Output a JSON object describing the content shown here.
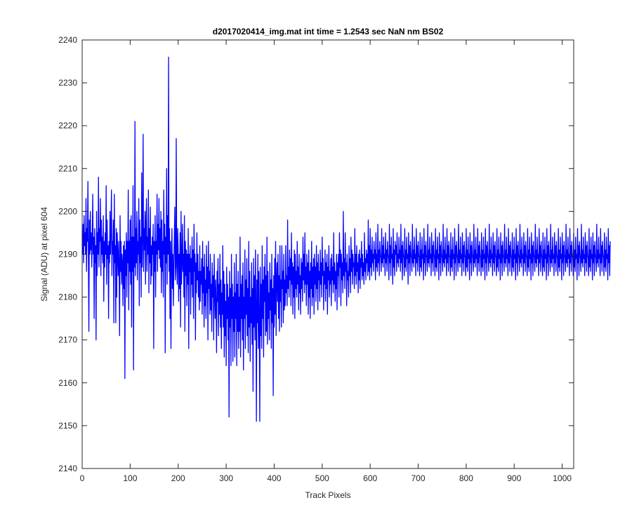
{
  "chart_data": {
    "type": "line",
    "title": "d2017020414_img.mat int time = 1.2543 sec  NaN nm BS02",
    "xlabel": "Track Pixels",
    "ylabel": "Signal (ADU) at pixel 604",
    "xlim": [
      0,
      1024
    ],
    "ylim": [
      2140,
      2240
    ],
    "xticks": [
      0,
      100,
      200,
      300,
      400,
      500,
      600,
      700,
      800,
      900,
      1000
    ],
    "yticks": [
      2140,
      2150,
      2160,
      2170,
      2180,
      2190,
      2200,
      2210,
      2220,
      2230,
      2240
    ],
    "grid": false,
    "legend": "none",
    "line_color": "#0000ff",
    "series": [
      {
        "x_start": 1,
        "x_step": 1,
        "values": [
          2190,
          2197,
          2188,
          2199,
          2192,
          2195,
          2190,
          2203,
          2186,
          2196,
          2193,
          2207,
          2189,
          2172,
          2198,
          2190,
          2200,
          2191,
          2195,
          2187,
          2193,
          2204,
          2190,
          2194,
          2175,
          2196,
          2188,
          2192,
          2170,
          2200,
          2185,
          2195,
          2190,
          2208,
          2187,
          2196,
          2193,
          2203,
          2185,
          2198,
          2190,
          2194,
          2188,
          2199,
          2179,
          2193,
          2187,
          2195,
          2190,
          2206,
          2183,
          2198,
          2189,
          2192,
          2175,
          2193,
          2188,
          2200,
          2190,
          2196,
          2205,
          2185,
          2193,
          2190,
          2198,
          2174,
          2204,
          2188,
          2192,
          2174,
          2196,
          2180,
          2195,
          2190,
          2185,
          2193,
          2187,
          2171,
          2199,
          2186,
          2193,
          2183,
          2190,
          2188,
          2178,
          2192,
          2182,
          2193,
          2161,
          2191,
          2185,
          2195,
          2180,
          2193,
          2188,
          2205,
          2177,
          2193,
          2186,
          2198,
          2183,
          2199,
          2173,
          2194,
          2186,
          2206,
          2163,
          2194,
          2187,
          2221,
          2185,
          2196,
          2188,
          2200,
          2184,
          2193,
          2190,
          2203,
          2178,
          2198,
          2188,
          2194,
          2180,
          2209,
          2187,
          2194,
          2218,
          2186,
          2196,
          2191,
          2200,
          2183,
          2197,
          2203,
          2186,
          2194,
          2190,
          2205,
          2181,
          2196,
          2188,
          2201,
          2183,
          2192,
          2185,
          2194,
          2190,
          2197,
          2168,
          2193,
          2186,
          2199,
          2180,
          2193,
          2190,
          2204,
          2186,
          2197,
          2191,
          2203,
          2189,
          2196,
          2187,
          2200,
          2181,
          2198,
          2186,
          2193,
          2180,
          2205,
          2190,
          2197,
          2167,
          2194,
          2188,
          2210,
          2183,
          2199,
          2190,
          2236,
          2186,
          2196,
          2175,
          2193,
          2168,
          2189,
          2196,
          2182,
          2190,
          2178,
          2187,
          2194,
          2201,
          2184,
          2187,
          2217,
          2188,
          2183,
          2196,
          2191,
          2179,
          2190,
          2182,
          2195,
          2173,
          2200,
          2183,
          2188,
          2197,
          2186,
          2190,
          2180,
          2199,
          2172,
          2193,
          2185,
          2191,
          2178,
          2190,
          2183,
          2196,
          2168,
          2190,
          2186,
          2192,
          2176,
          2189,
          2183,
          2194,
          2180,
          2191,
          2175,
          2197,
          2186,
          2190,
          2170,
          2188,
          2181,
          2195,
          2184,
          2190,
          2180,
          2186,
          2177,
          2192,
          2179,
          2186,
          2183,
          2189,
          2176,
          2193,
          2181,
          2187,
          2173,
          2190,
          2178,
          2184,
          2175,
          2192,
          2181,
          2187,
          2170,
          2193,
          2182,
          2186,
          2176,
          2190,
          2177,
          2183,
          2172,
          2188,
          2180,
          2185,
          2170,
          2190,
          2182,
          2175,
          2184,
          2178,
          2167,
          2186,
          2179,
          2189,
          2171,
          2183,
          2176,
          2190,
          2173,
          2184,
          2168,
          2181,
          2176,
          2192,
          2173,
          2186,
          2166,
          2183,
          2171,
          2179,
          2164,
          2187,
          2175,
          2183,
          2170,
          2180,
          2152,
          2186,
          2173,
          2182,
          2164,
          2190,
          2175,
          2183,
          2165,
          2180,
          2172,
          2188,
          2166,
          2181,
          2175,
          2190,
          2164,
          2183,
          2172,
          2186,
          2168,
          2180,
          2172,
          2194,
          2166,
          2183,
          2175,
          2185,
          2170,
          2188,
          2163,
          2180,
          2175,
          2191,
          2168,
          2184,
          2176,
          2189,
          2171,
          2182,
          2167,
          2193,
          2173,
          2186,
          2165,
          2180,
          2174,
          2188,
          2169,
          2182,
          2158,
          2189,
          2173,
          2185,
          2170,
          2191,
          2178,
          2151,
          2184,
          2174,
          2190,
          2168,
          2186,
          2175,
          2151,
          2187,
          2171,
          2183,
          2168,
          2192,
          2175,
          2184,
          2166,
          2187,
          2179,
          2190,
          2171,
          2185,
          2172,
          2194,
          2169,
          2186,
          2175,
          2181,
          2170,
          2188,
          2177,
          2184,
          2168,
          2190,
          2174,
          2182,
          2157,
          2185,
          2173,
          2189,
          2176,
          2193,
          2171,
          2184,
          2188,
          2179,
          2190,
          2175,
          2185,
          2172,
          2192,
          2179,
          2184,
          2173,
          2192,
          2182,
          2186,
          2174,
          2190,
          2177,
          2184,
          2178,
          2192,
          2181,
          2185,
          2178,
          2198,
          2182,
          2187,
          2180,
          2191,
          2184,
          2189,
          2178,
          2195,
          2183,
          2188,
          2176,
          2187,
          2180,
          2191,
          2175,
          2190,
          2182,
          2186,
          2180,
          2193,
          2183,
          2187,
          2177,
          2190,
          2181,
          2185,
          2176,
          2189,
          2182,
          2188,
          2179,
          2194,
          2184,
          2190,
          2181,
          2195,
          2183,
          2187,
          2178,
          2190,
          2183,
          2188,
          2176,
          2191,
          2180,
          2186,
          2175,
          2188,
          2182,
          2193,
          2178,
          2187,
          2180,
          2189,
          2176,
          2190,
          2183,
          2187,
          2179,
          2192,
          2182,
          2188,
          2177,
          2190,
          2184,
          2186,
          2179,
          2191,
          2183,
          2188,
          2180,
          2194,
          2185,
          2189,
          2177,
          2186,
          2183,
          2191,
          2179,
          2188,
          2182,
          2190,
          2176,
          2187,
          2184,
          2192,
          2180,
          2186,
          2183,
          2189,
          2178,
          2190,
          2184,
          2187,
          2181,
          2195,
          2183,
          2188,
          2179,
          2186,
          2182,
          2190,
          2177,
          2188,
          2185,
          2190,
          2180,
          2195,
          2187,
          2191,
          2178,
          2190,
          2184,
          2188,
          2181,
          2200,
          2185,
          2189,
          2182,
          2195,
          2186,
          2188,
          2178,
          2190,
          2184,
          2186,
          2180,
          2192,
          2185,
          2189,
          2181,
          2194,
          2186,
          2191,
          2183,
          2190,
          2187,
          2188,
          2182,
          2196,
          2185,
          2190,
          2183,
          2192,
          2186,
          2188,
          2181,
          2190,
          2184,
          2191,
          2182,
          2189,
          2187,
          2193,
          2184,
          2190,
          2185,
          2188,
          2183,
          2195,
          2186,
          2189,
          2184,
          2191,
          2188,
          2190,
          2185,
          2198,
          2186,
          2192,
          2184,
          2196,
          2187,
          2191,
          2185,
          2194,
          2188,
          2190,
          2186,
          2193,
          2189,
          2191,
          2184,
          2195,
          2187,
          2190,
          2186,
          2197,
          2188,
          2191,
          2185,
          2193,
          2190,
          2189,
          2186,
          2196,
          2188,
          2192,
          2187,
          2194,
          2189,
          2190,
          2185,
          2195,
          2188,
          2191,
          2186,
          2193,
          2190,
          2189,
          2184,
          2197,
          2188,
          2192,
          2185,
          2194,
          2189,
          2190,
          2183,
          2196,
          2187,
          2191,
          2185,
          2193,
          2190,
          2192,
          2186,
          2195,
          2188,
          2190,
          2187,
          2194,
          2189,
          2191,
          2186,
          2197,
          2188,
          2192,
          2184,
          2193,
          2190,
          2189,
          2185,
          2196,
          2187,
          2191,
          2186,
          2194,
          2189,
          2190,
          2183,
          2195,
          2188,
          2192,
          2185,
          2193,
          2190,
          2189,
          2186,
          2197,
          2188,
          2191,
          2187,
          2194,
          2189,
          2190,
          2185,
          2196,
          2188,
          2192,
          2186,
          2193,
          2190,
          2189,
          2185,
          2195,
          2187,
          2191,
          2186,
          2194,
          2189,
          2190,
          2184,
          2196,
          2188,
          2192,
          2185,
          2193,
          2190,
          2189,
          2186,
          2197,
          2188,
          2191,
          2187,
          2194,
          2189,
          2190,
          2185,
          2195,
          2188,
          2192,
          2186,
          2193,
          2190,
          2189,
          2185,
          2196,
          2187,
          2191,
          2186,
          2194,
          2189,
          2190,
          2184,
          2195,
          2188,
          2192,
          2185,
          2193,
          2190,
          2189,
          2186,
          2197,
          2188,
          2191,
          2187,
          2194,
          2189,
          2190,
          2185,
          2196,
          2188,
          2192,
          2186,
          2193,
          2190,
          2189,
          2185,
          2195,
          2187,
          2191,
          2186,
          2194,
          2189,
          2190,
          2184,
          2196,
          2188,
          2192,
          2185,
          2193,
          2190,
          2189,
          2186,
          2197,
          2188,
          2191,
          2187,
          2194,
          2189,
          2190,
          2185,
          2195,
          2188,
          2192,
          2186,
          2193,
          2190,
          2189,
          2185,
          2196,
          2187,
          2191,
          2186,
          2194,
          2189,
          2190,
          2184,
          2195,
          2188,
          2192,
          2185,
          2193,
          2190,
          2189,
          2186,
          2197,
          2188,
          2191,
          2187,
          2194,
          2189,
          2190,
          2185,
          2196,
          2188,
          2192,
          2186,
          2193,
          2190,
          2189,
          2185,
          2195,
          2187,
          2191,
          2186,
          2194,
          2189,
          2190,
          2184,
          2196,
          2188,
          2192,
          2185,
          2193,
          2190,
          2189,
          2186,
          2197,
          2188,
          2191,
          2187,
          2194,
          2189,
          2190,
          2185,
          2195,
          2188,
          2192,
          2186,
          2193,
          2190,
          2189,
          2185,
          2196,
          2187,
          2191,
          2186,
          2194,
          2189,
          2190,
          2184,
          2195,
          2188,
          2192,
          2185,
          2193,
          2190,
          2189,
          2186,
          2197,
          2188,
          2191,
          2187,
          2194,
          2189,
          2190,
          2185,
          2196,
          2188,
          2192,
          2186,
          2193,
          2190,
          2189,
          2185,
          2195,
          2187,
          2191,
          2186,
          2194,
          2189,
          2190,
          2184,
          2196,
          2188,
          2192,
          2185,
          2193,
          2190,
          2189,
          2186,
          2197,
          2188,
          2191,
          2187,
          2194,
          2189,
          2190,
          2185,
          2195,
          2188,
          2192,
          2186,
          2193,
          2190,
          2189,
          2185,
          2196,
          2187,
          2191,
          2186,
          2194,
          2189,
          2190,
          2184,
          2195,
          2188,
          2192,
          2185,
          2193,
          2190,
          2189,
          2186,
          2197,
          2188,
          2191,
          2187,
          2194,
          2189,
          2190,
          2185,
          2196,
          2188,
          2192,
          2186,
          2193,
          2190,
          2189,
          2185,
          2195,
          2187,
          2191,
          2186,
          2194,
          2189,
          2190,
          2184,
          2196,
          2188,
          2192,
          2185,
          2193,
          2190,
          2189,
          2186,
          2197,
          2188,
          2191,
          2187,
          2194,
          2189,
          2190,
          2185,
          2195,
          2188,
          2192,
          2186,
          2193,
          2190,
          2189,
          2185,
          2196,
          2187,
          2191,
          2186,
          2194,
          2189,
          2190,
          2184,
          2195,
          2188,
          2192,
          2185,
          2193,
          2190,
          2189,
          2186,
          2197,
          2188,
          2191,
          2187,
          2194,
          2189,
          2190,
          2185,
          2196,
          2188,
          2192,
          2186,
          2193,
          2190,
          2189,
          2185,
          2195,
          2187,
          2191,
          2186,
          2194,
          2189,
          2190,
          2184,
          2196,
          2188,
          2192,
          2185,
          2193,
          2190,
          2189,
          2186,
          2197,
          2188,
          2191,
          2187,
          2194,
          2189,
          2190,
          2185,
          2195,
          2188,
          2192,
          2186,
          2193,
          2190,
          2189,
          2185,
          2196,
          2187,
          2191,
          2186,
          2194,
          2189,
          2190,
          2184,
          2195,
          2188,
          2192,
          2185,
          2193,
          2190,
          2189,
          2186,
          2197,
          2188,
          2191,
          2187,
          2194,
          2189,
          2190,
          2185,
          2196,
          2188,
          2192,
          2186,
          2193,
          2190,
          2189,
          2185,
          2195,
          2187,
          2191,
          2186,
          2194,
          2189,
          2190,
          2184,
          2196,
          2188,
          2192,
          2185,
          2193
        ]
      }
    ]
  }
}
